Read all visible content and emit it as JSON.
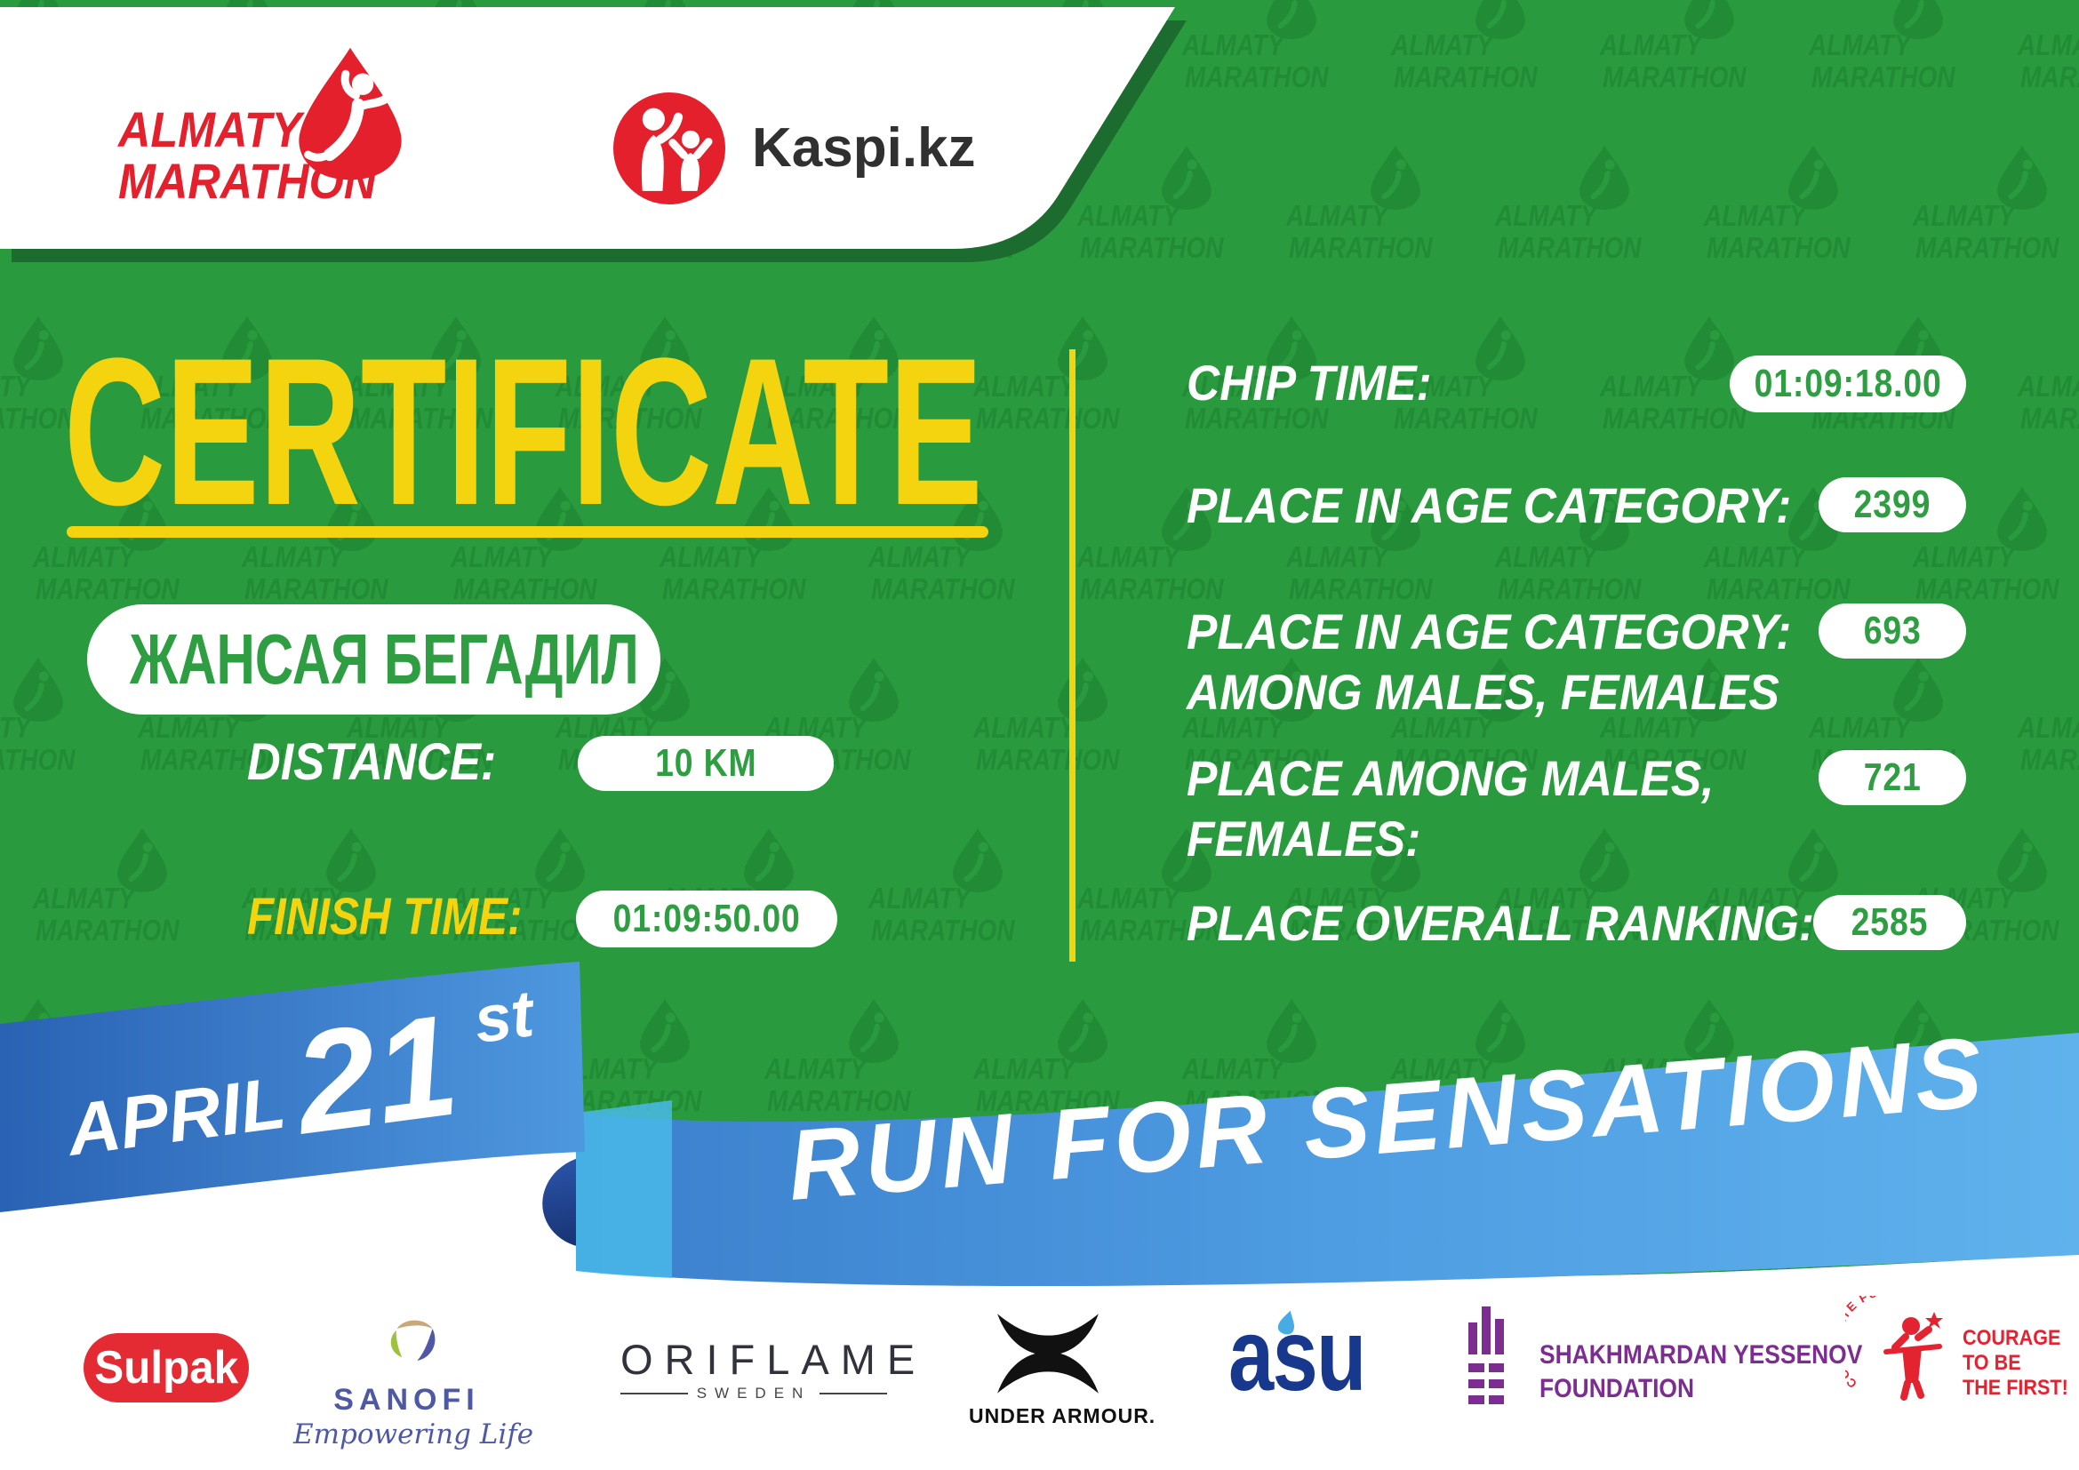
{
  "header": {
    "almaty_logo": {
      "line1": "ALMATY",
      "line2": "MARATHON"
    },
    "kaspi_label": "Kaspi.kz"
  },
  "watermark": {
    "line1": "ALMATY",
    "line2": "MARATHON"
  },
  "certificate": {
    "title": "CERTIFICATE",
    "name": "ЖАНСАЯ БЕГАДИЛ",
    "distance_label": "DISTANCE:",
    "distance_value": "10 KM",
    "finish_label": "FINISH TIME:",
    "finish_value": "01:09:50.00"
  },
  "results": {
    "rows": [
      {
        "label": "CHIP TIME:",
        "value": "01:09:18.00"
      },
      {
        "label": "PLACE IN AGE CATEGORY:",
        "value": "2399"
      },
      {
        "label": "PLACE IN AGE CATEGORY:",
        "label2": "AMONG MALES, FEMALES",
        "value": "693"
      },
      {
        "label": "PLACE AMONG MALES,",
        "label2": "FEMALES:",
        "value": "721"
      },
      {
        "label": "PLACE OVERALL RANKING:",
        "value": "2585"
      }
    ]
  },
  "ribbon": {
    "month": "APRIL",
    "day": "21",
    "day_suffix": "st",
    "slogan": "RUN FOR SENSATIONS"
  },
  "sponsors": {
    "sulpak": "Sulpak",
    "sanofi_name": "SANOFI",
    "sanofi_tagline": "Empowering Life",
    "oriflame_name": "ORIFLAME",
    "oriflame_sub": "SWEDEN",
    "under_armour": "UNDER ARMOUR.",
    "asu": "asu",
    "yessenov_line1": "SHAKHMARDAN YESSENOV",
    "yessenov_line2": "FOUNDATION",
    "courage_arc": "CORPORATE FUND",
    "courage_line1": "COURAGE",
    "courage_line2": "TO BE",
    "courage_line3": "THE FIRST!"
  },
  "colors": {
    "green": "#2A9A3E",
    "dark_green": "#1C6B2F",
    "yellow": "#F4D40E",
    "ribbon_blue_dark": "#2A62B4",
    "ribbon_blue_light": "#5FB2EC",
    "red": "#E42A32",
    "navy": "#17388C",
    "purple": "#7C2E90",
    "sanofi_blue": "#4E58A5"
  }
}
